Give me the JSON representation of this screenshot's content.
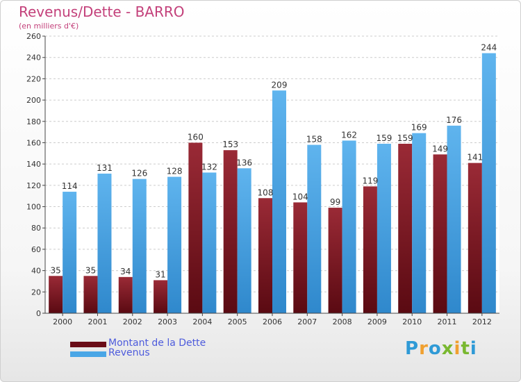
{
  "colors": {
    "debt": "#7a1420",
    "revenue": "#4aa6e6",
    "title": "#c3407a",
    "legend_text": "#4d5bdc"
  },
  "logo": {
    "text": "Proxiti"
  },
  "chart_data": {
    "type": "bar",
    "title": "Revenus/Dette - BARRO",
    "subtitle": "(en milliers d'€)",
    "xlabel": "",
    "ylabel": "",
    "ylim": [
      0,
      260
    ],
    "ytick_step": 20,
    "grid": true,
    "legend_position": "bottom-left",
    "categories": [
      "2000",
      "2001",
      "2002",
      "2003",
      "2004",
      "2005",
      "2006",
      "2007",
      "2008",
      "2009",
      "2010",
      "2011",
      "2012"
    ],
    "series": [
      {
        "name": "Montant de la Dette",
        "values": [
          35,
          35,
          34,
          31,
          160,
          153,
          108,
          104,
          99,
          119,
          159,
          149,
          141
        ]
      },
      {
        "name": "Revenus",
        "values": [
          114,
          131,
          126,
          128,
          132,
          136,
          209,
          158,
          162,
          159,
          169,
          176,
          244
        ]
      }
    ]
  }
}
